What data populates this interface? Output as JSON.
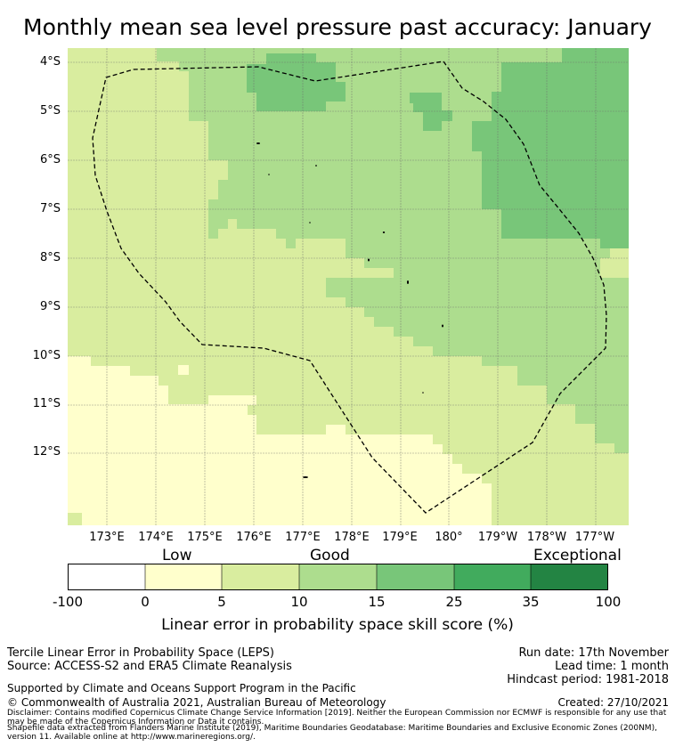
{
  "title": "Monthly mean sea level pressure past accuracy: January",
  "map": {
    "lat_labels": [
      "4°S",
      "5°S",
      "6°S",
      "7°S",
      "8°S",
      "9°S",
      "10°S",
      "11°S",
      "12°S"
    ],
    "lon_labels": [
      "173°E",
      "174°E",
      "175°E",
      "176°E",
      "177°E",
      "178°E",
      "179°E",
      "180°",
      "179°W",
      "178°W",
      "177°W"
    ],
    "colors": {
      "low": "#ffffcc",
      "low_good": "#d9ed9f",
      "good": "#addd8e",
      "good_high": "#78c679",
      "high": "#41ab5d",
      "exceptional": "#238443",
      "outline": "#000000"
    }
  },
  "colorbar": {
    "categories": [
      "Low",
      "Good",
      "Exceptional"
    ],
    "ticks": [
      "-100",
      "0",
      "5",
      "10",
      "15",
      "25",
      "35",
      "100"
    ],
    "label": "Linear error in probability space skill score (%)"
  },
  "footer": {
    "left_line1": "Tercile Linear Error in Probability Space (LEPS)",
    "left_line2": "Source: ACCESS-S2 and ERA5 Climate Reanalysis",
    "right_line1": "Run date: 17th November",
    "right_line2": "Lead time: 1 month",
    "right_line3": "Hindcast period: 1981-2018",
    "supported": "Supported by Climate and Oceans Support Program in the Pacific",
    "copyright": "© Commonwealth of Australia 2021, Australian Bureau of Meteorology",
    "created": "Created: 27/10/2021",
    "disclaimer": "Disclaimer: Contains modified Copernicus Climate Change Service Information [2019]. Neither the European Commission nor ECMWF is responsible for any use that may be made of the Copernicus Information or Data it contains.",
    "shapefile": "Shapefile data extracted from Flanders Marine Institute (2019), Maritime Boundaries Geodatabase: Maritime Boundaries and Exclusive Economic Zones (200NM), version 11. Available online at http://www.marineregions.org/."
  }
}
